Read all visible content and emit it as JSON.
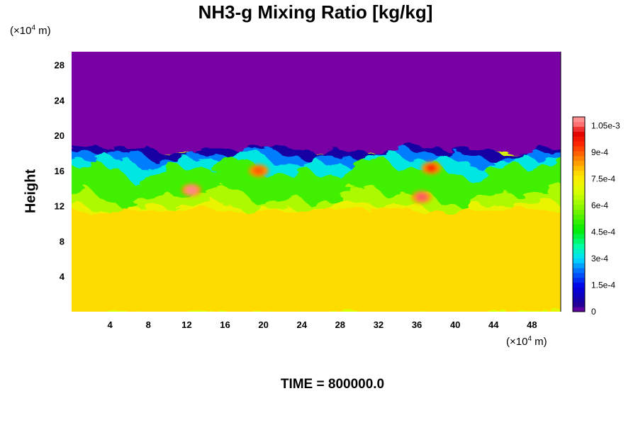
{
  "title": "NH3-g Mixing Ratio [kg/kg]",
  "y_unit_prefix": "(×10",
  "y_unit_exp": "4",
  "y_unit_suffix": " m)",
  "x_unit_prefix": "(×10",
  "x_unit_exp": "4",
  "x_unit_suffix": " m)",
  "ylabel": "Height",
  "time_label": "TIME = 800000.0",
  "chart_data": {
    "type": "heatmap",
    "title": "NH3-g Mixing Ratio [kg/kg]",
    "xlabel": "",
    "ylabel": "Height",
    "x_unit": "(×10^4 m)",
    "y_unit": "(×10^4 m)",
    "xlim": [
      0,
      51
    ],
    "ylim": [
      0,
      29.5
    ],
    "x_ticks": [
      "4",
      "8",
      "12",
      "16",
      "20",
      "24",
      "28",
      "32",
      "36",
      "40",
      "44",
      "48"
    ],
    "y_ticks": [
      "4",
      "8",
      "12",
      "16",
      "20",
      "24",
      "28"
    ],
    "colorbar": {
      "min": 0,
      "max": 0.0011,
      "tick_labels": [
        "0",
        "1.5e-4",
        "3e-4",
        "4.5e-4",
        "6e-4",
        "7.5e-4",
        "9e-4",
        "1.05e-3"
      ],
      "tick_values": [
        0,
        0.00015,
        0.0003,
        0.00045,
        0.0006,
        0.00075,
        0.0009,
        0.00105
      ]
    },
    "approximate_fields": {
      "lower_layer": {
        "height_range": [
          0,
          11.5
        ],
        "value": 0.00078
      },
      "upper_layer": {
        "height_range": [
          18.2,
          29.5
        ],
        "value": 0
      },
      "transition_layer_values_range": [
        0.00015,
        0.00108
      ],
      "local_maxima": [
        {
          "x": 12.5,
          "y": 13.8,
          "value": 0.00108
        },
        {
          "x": 36.5,
          "y": 13.0,
          "value": 0.00105
        },
        {
          "x": 37.5,
          "y": 16.3,
          "value": 0.00095
        },
        {
          "x": 19.5,
          "y": 16.0,
          "value": 0.0009
        }
      ]
    }
  }
}
